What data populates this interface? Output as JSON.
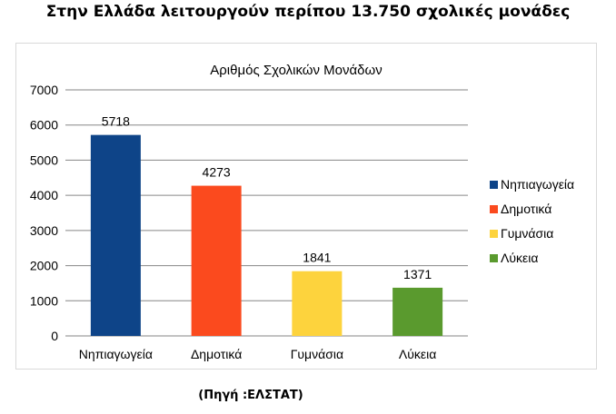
{
  "heading": "Στην Ελλάδα λειτουργούν περίπου 13.750 σχολικές μονάδες",
  "source": "(Πηγή :ΕΛΣΤΑΤ)",
  "chart_data": {
    "type": "bar",
    "title": "Αριθμός Σχολικών Μονάδων",
    "categories": [
      "Νηπιαγωγεία",
      "Δημοτικά",
      "Γυμνάσια",
      "Λύκεια"
    ],
    "values": [
      5718,
      4273,
      1841,
      1371
    ],
    "colors": [
      "#0e4488",
      "#fb4a1e",
      "#fdd33d",
      "#5a9a2e"
    ],
    "ylim": [
      0,
      7000
    ],
    "yticks": [
      0,
      1000,
      2000,
      3000,
      4000,
      5000,
      6000,
      7000
    ],
    "grid": true,
    "legend": {
      "placement": "right",
      "entries": [
        "Νηπιαγωγεία",
        "Δημοτικά",
        "Γυμνάσια",
        "Λύκεια"
      ]
    },
    "xlabel": "",
    "ylabel": ""
  }
}
